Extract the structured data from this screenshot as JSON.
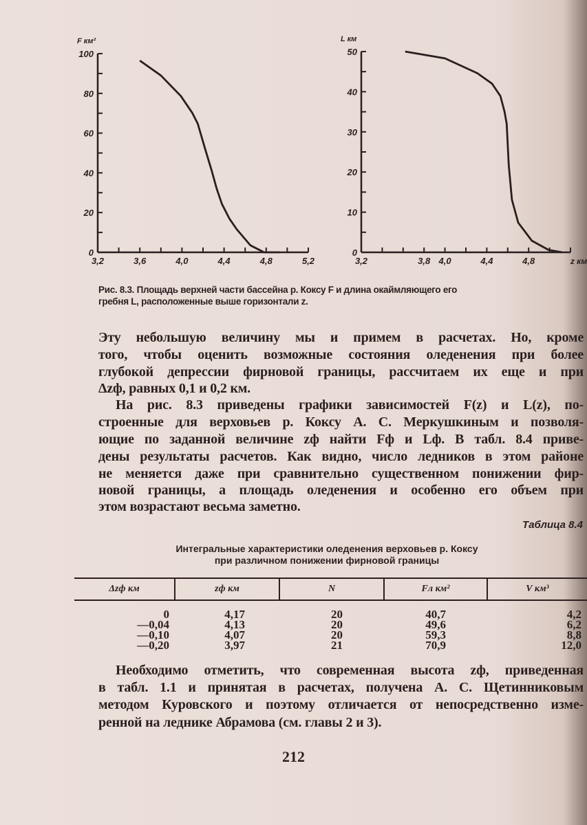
{
  "chart_data": [
    {
      "type": "line",
      "ylabel": "F км²",
      "xlim": [
        3.2,
        5.2
      ],
      "ylim": [
        0,
        100
      ],
      "xticks": [
        "3,2",
        "3,6",
        "4,0",
        "4,4",
        "4,8",
        "5,2"
      ],
      "yticks": [
        "0",
        "20",
        "40",
        "60",
        "80",
        "100"
      ],
      "grid": false,
      "x": [
        3.6,
        3.8,
        3.99,
        4.1,
        4.15,
        4.22,
        4.28,
        4.33,
        4.38,
        4.45,
        4.52,
        4.65,
        4.78,
        4.93
      ],
      "y": [
        96.5,
        89,
        78.6,
        70,
        64.7,
        52,
        41.6,
        32,
        24.3,
        17,
        11.6,
        3.5,
        0,
        0
      ]
    },
    {
      "type": "line",
      "ylabel": "L км",
      "xlabel": "z км",
      "xlim": [
        3.2,
        5.2
      ],
      "ylim": [
        0,
        50
      ],
      "xticks": [
        "3,2",
        "3,8",
        "4,0",
        "4,4",
        "4,8"
      ],
      "yticks": [
        "0",
        "10",
        "20",
        "30",
        "40",
        "50"
      ],
      "grid": false,
      "x": [
        3.62,
        4.0,
        4.31,
        4.45,
        4.53,
        4.57,
        4.59,
        4.61,
        4.64,
        4.7,
        4.83,
        4.99,
        5.12
      ],
      "y": [
        50,
        48.3,
        44.6,
        42,
        38.9,
        35,
        32,
        21.7,
        13.1,
        7.4,
        2.9,
        0.6,
        0
      ]
    }
  ],
  "figure_caption": [
    "Рис. 8.3. Площадь верхней части бассейна р. Коксу F и длина окаймляющего его",
    "гребня L, расположенные выше горизонтали z."
  ],
  "paragraph1": [
    "Эту небольшую величину мы и примем в расчетах. Но, кроме",
    "того, чтобы оценить возможные состояния оледенения при более",
    "глубокой депрессии фирновой границы, рассчитаем их еще и при",
    "Δzф, равных 0,1 и 0,2 км."
  ],
  "paragraph2": [
    "На рис. 8.3 приведены графики зависимостей F(z) и L(z), по-",
    "строенные для верховьев р. Коксу А. С. Меркушкиным и позволя-",
    "ющие по заданной величине zф найти Fф и Lф. В табл. 8.4 приве-",
    "дены результаты расчетов. Как видно, число ледников в этом районе",
    "не меняется даже при сравнительно существенном понижении фир-",
    "новой границы, а площадь оледенения и особенно его объем при",
    "этом возрастают весьма заметно."
  ],
  "table": {
    "number": "Таблица 8.4",
    "title": [
      "Интегральные характеристики оледенения верховьев р. Коксу",
      "при различном понижении фирновой границы"
    ],
    "headers": [
      "Δzф км",
      "zф км",
      "N",
      "Fл км²",
      "V км³"
    ],
    "rows": [
      [
        "0",
        "4,17",
        "20",
        "40,7",
        "4,2"
      ],
      [
        "—0,04",
        "4,13",
        "20",
        "49,6",
        "6,2"
      ],
      [
        "—0,10",
        "4,07",
        "20",
        "59,3",
        "8,8"
      ],
      [
        "—0,20",
        "3,97",
        "21",
        "70,9",
        "12,0"
      ]
    ]
  },
  "paragraph3": [
    "Необходимо отметить, что современная высота zф, приведенная",
    "в табл. 1.1 и принятая в расчетах, получена А. С. Щетинниковым",
    "методом Куровского и поэтому отличается от непосредственно изме-",
    "ренной на леднике Абрамова (см. главы 2 и 3)."
  ],
  "page_number": "212"
}
